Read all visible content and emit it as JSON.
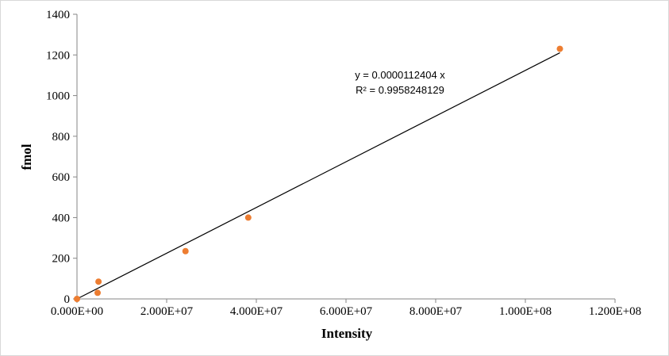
{
  "chart_data": {
    "type": "scatter",
    "xlabel": "Intensity",
    "ylabel": "fmol",
    "xlim": [
      0,
      120000000
    ],
    "ylim": [
      0,
      1400
    ],
    "x_ticks": [
      0,
      20000000,
      40000000,
      60000000,
      80000000,
      100000000,
      120000000
    ],
    "x_tick_labels": [
      "0.000E+00",
      "2.000E+07",
      "4.000E+07",
      "6.000E+07",
      "8.000E+07",
      "1.000E+08",
      "1.200E+08"
    ],
    "y_ticks": [
      0,
      200,
      400,
      600,
      800,
      1000,
      1200,
      1400
    ],
    "y_tick_labels": [
      "0",
      "200",
      "400",
      "600",
      "800",
      "1000",
      "1200",
      "1400"
    ],
    "grid": false,
    "series": [
      {
        "points": [
          {
            "x": 0,
            "y": 0
          },
          {
            "x": 4600000,
            "y": 30
          },
          {
            "x": 4800000,
            "y": 85
          },
          {
            "x": 24200000,
            "y": 235
          },
          {
            "x": 38200000,
            "y": 400
          },
          {
            "x": 107700000,
            "y": 1230
          }
        ],
        "color": "#ED7D31"
      }
    ],
    "trendline": {
      "slope": 1.12404e-05,
      "x_range": [
        0,
        107700000
      ],
      "color": "#000000"
    },
    "annotations": [
      "y = 0.0000112404 x",
      "R² = 0.9958248129"
    ]
  }
}
